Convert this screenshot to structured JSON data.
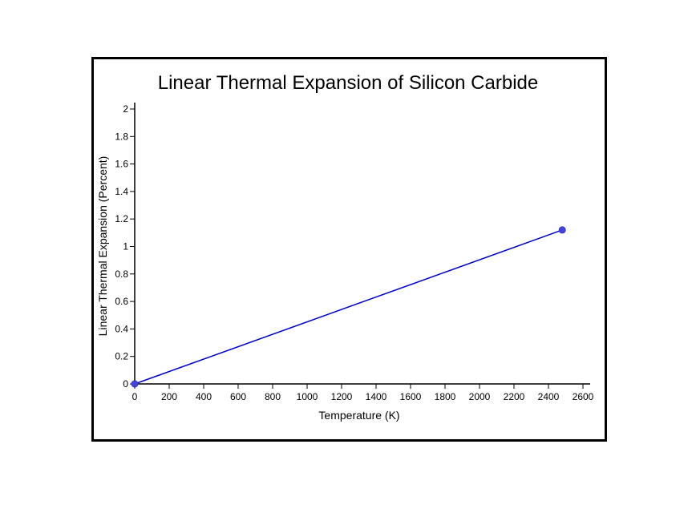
{
  "chart_data": {
    "type": "line",
    "title": "Linear Thermal Expansion of Silicon Carbide",
    "xlabel": "Temperature (K)",
    "ylabel": "Linear Thermal Expansion (Percent)",
    "xlim": [
      0,
      2600
    ],
    "ylim": [
      0,
      2
    ],
    "x_ticks": [
      0,
      200,
      400,
      600,
      800,
      1000,
      1200,
      1400,
      1600,
      1800,
      2000,
      2200,
      2400,
      2600
    ],
    "y_ticks": [
      0,
      0.2,
      0.4,
      0.6,
      0.8,
      1,
      1.2,
      1.4,
      1.6,
      1.8,
      2
    ],
    "grid": false,
    "series": [
      {
        "color": "#0000cc",
        "marker_color": "#4444dd",
        "points": [
          {
            "x": 0,
            "y": 0
          },
          {
            "x": 2480,
            "y": 1.12
          }
        ]
      }
    ]
  }
}
